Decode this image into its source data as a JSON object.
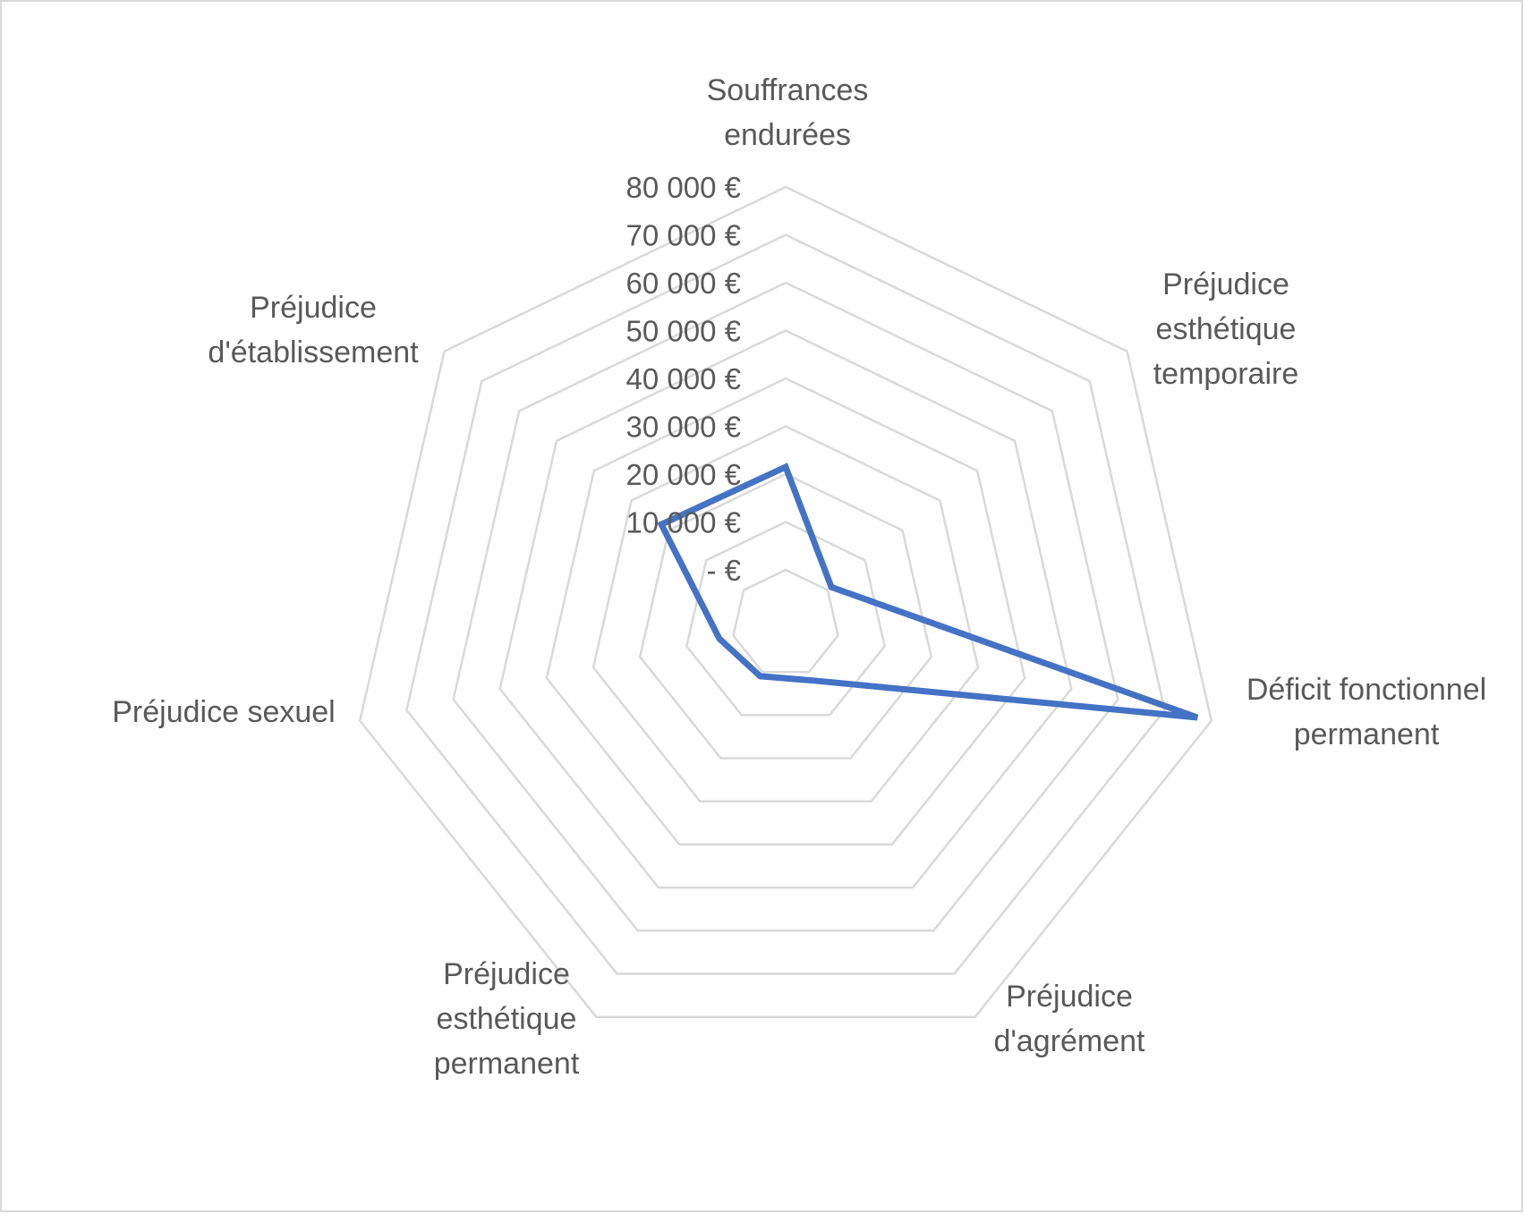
{
  "chart_data": {
    "type": "radar",
    "categories": [
      "Souffrances endurées",
      "Préjudice esthétique temporaire",
      "Déficit fonctionnel permanent",
      "Préjudice d'agrément",
      "Préjudice esthétique permanent",
      "Préjudice sexuel",
      "Préjudice d'établissement"
    ],
    "category_lines": [
      [
        "Souffrances",
        "endurées"
      ],
      [
        "Préjudice",
        "esthétique",
        "temporaire"
      ],
      [
        "Déficit fonctionnel",
        "permanent"
      ],
      [
        "Préjudice",
        "d'agrément"
      ],
      [
        "Préjudice",
        "esthétique",
        "permanent"
      ],
      [
        "Préjudice sexuel"
      ],
      [
        "Préjudice",
        "d'établissement"
      ]
    ],
    "tick_values": [
      0,
      10000,
      20000,
      30000,
      40000,
      50000,
      60000,
      70000,
      80000
    ],
    "tick_labels": [
      "-  €",
      "10 000 €",
      "20 000 €",
      "30 000 €",
      "40 000 €",
      "50 000 €",
      "60 000 €",
      "70 000 €",
      "80 000 €"
    ],
    "rlim": [
      0,
      80000
    ],
    "series": [
      {
        "values": [
          21500,
          1000,
          77000,
          2000,
          1000,
          3000,
          22000
        ],
        "color": "#4472c4"
      }
    ],
    "grid": true,
    "legend": "none"
  }
}
